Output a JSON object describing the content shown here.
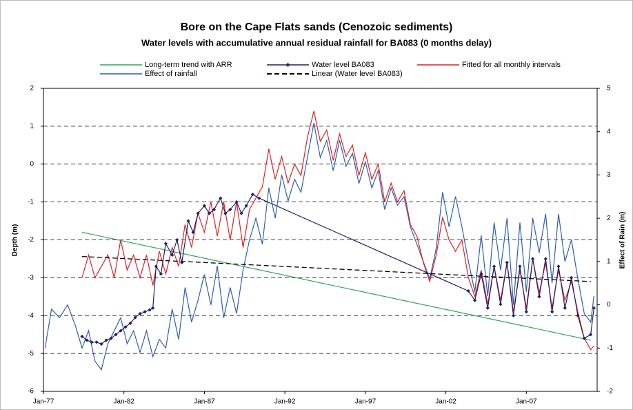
{
  "chart_data": {
    "type": "line",
    "title": "Bore on the Cape Flats sands (Cenozoic sediments)",
    "subtitle": "Water levels with accumulative annual residual rainfall for BA083 (0 months delay)",
    "ylabel": "Depth (m)",
    "y2label": "Effect of Rain (m)",
    "xlim": [
      1977,
      2011.4
    ],
    "xticks": [
      {
        "value": 1977,
        "label": "Jan-77"
      },
      {
        "value": 1982,
        "label": "Jan-82"
      },
      {
        "value": 1987,
        "label": "Jan-87"
      },
      {
        "value": 1992,
        "label": "Jan-92"
      },
      {
        "value": 1997,
        "label": "Jan-97"
      },
      {
        "value": 2002,
        "label": "Jan-02"
      },
      {
        "value": 2007,
        "label": "Jan-07"
      }
    ],
    "ylim": [
      -6,
      2
    ],
    "yticks": [
      -6,
      -5,
      -4,
      -3,
      -2,
      -1,
      0,
      1,
      2
    ],
    "y2lim": [
      -2,
      5
    ],
    "y2ticks": [
      -2,
      -1,
      0,
      1,
      2,
      3,
      4,
      5
    ],
    "grid": true,
    "legend": "top",
    "series": [
      {
        "name": "Long-term trend with ARR",
        "color": "#2ca25f",
        "x": [
          1979.4,
          2011.0
        ],
        "values": [
          -1.8,
          -4.65
        ]
      },
      {
        "name": "Water level BA083",
        "color": "#1f1f6b",
        "marker": "diamond",
        "x": [
          1979.4,
          1979.7,
          1980.0,
          1980.3,
          1980.6,
          1980.9,
          1981.2,
          1981.5,
          1981.8,
          1982.1,
          1982.4,
          1982.7,
          1983.0,
          1983.3,
          1983.6,
          1983.8,
          1984.0,
          1984.3,
          1984.6,
          1985.0,
          1985.3,
          1985.6,
          1986.0,
          1986.3,
          1986.6,
          1987.0,
          1987.3,
          1987.6,
          1988.0,
          1988.3,
          1988.6,
          1989.0,
          1989.3,
          1989.6,
          1990.0,
          1990.4,
          2003.4,
          2003.8,
          2004.2,
          2004.6,
          2005.0,
          2005.4,
          2005.8,
          2006.2,
          2006.6,
          2007.0,
          2007.4,
          2007.8,
          2008.2,
          2008.6,
          2009.0,
          2009.4,
          2009.8,
          2010.2,
          2010.6,
          2011.0,
          2011.2
        ],
        "values": [
          -4.55,
          -4.65,
          -4.7,
          -4.7,
          -4.75,
          -4.65,
          -4.6,
          -4.5,
          -4.4,
          -4.3,
          -4.2,
          -4.05,
          -3.95,
          -3.9,
          -3.85,
          -3.8,
          -2.7,
          -2.9,
          -2.1,
          -2.4,
          -2.0,
          -2.6,
          -1.5,
          -1.8,
          -1.3,
          -1.1,
          -1.3,
          -1.2,
          -0.9,
          -1.3,
          -1.2,
          -1.0,
          -1.3,
          -1.1,
          -0.8,
          -0.9,
          -3.35,
          -3.6,
          -2.9,
          -3.8,
          -2.7,
          -3.7,
          -2.6,
          -4.0,
          -2.7,
          -3.9,
          -2.5,
          -3.5,
          -2.5,
          -3.9,
          -2.7,
          -3.8,
          -3.0,
          -4.0,
          -4.6,
          -4.5,
          -3.8
        ]
      },
      {
        "name": "Fitted for all monthly intervals",
        "color": "#e02020",
        "x": [
          1979.4,
          1979.8,
          1980.2,
          1980.6,
          1981.0,
          1981.4,
          1981.8,
          1982.2,
          1982.6,
          1983.0,
          1983.4,
          1983.8,
          1984.2,
          1984.6,
          1985.0,
          1985.4,
          1985.8,
          1986.2,
          1986.6,
          1987.0,
          1987.4,
          1987.8,
          1988.2,
          1988.6,
          1989.0,
          1989.4,
          1989.8,
          1990.2,
          1990.6,
          1991.0,
          1991.4,
          1991.8,
          1992.2,
          1992.6,
          1993.0,
          1993.4,
          1993.8,
          1994.2,
          1994.6,
          1995.0,
          1995.4,
          1995.8,
          1996.2,
          1996.6,
          1997.0,
          1997.4,
          1997.8,
          1998.2,
          1998.6,
          1999.0,
          1999.4,
          1999.8,
          2000.2,
          2000.6,
          2001.0,
          2001.4,
          2001.8,
          2002.2,
          2002.6,
          2003.0,
          2003.4,
          2003.8,
          2004.2,
          2004.6,
          2005.0,
          2005.4,
          2005.8,
          2006.2,
          2006.6,
          2007.0,
          2007.4,
          2007.8,
          2008.2,
          2008.6,
          2009.0,
          2009.4,
          2009.8,
          2010.2,
          2010.6,
          2011.0,
          2011.2
        ],
        "values": [
          -3.0,
          -2.4,
          -3.0,
          -2.7,
          -2.4,
          -3.0,
          -2.0,
          -2.8,
          -2.4,
          -3.0,
          -2.4,
          -3.2,
          -2.3,
          -2.9,
          -2.2,
          -2.7,
          -1.6,
          -2.2,
          -1.3,
          -1.8,
          -1.0,
          -1.9,
          -1.0,
          -2.0,
          -1.0,
          -2.2,
          -1.2,
          -0.9,
          -0.6,
          0.4,
          -0.4,
          0.2,
          -0.5,
          0.0,
          -0.3,
          0.7,
          1.4,
          0.6,
          0.9,
          0.1,
          0.8,
          0.2,
          0.5,
          -0.3,
          0.3,
          -0.4,
          0.0,
          -1.0,
          -0.5,
          -1.0,
          -0.7,
          -1.6,
          -1.9,
          -2.6,
          -3.1,
          -2.4,
          -1.4,
          -2.0,
          -2.3,
          -2.0,
          -3.0,
          -3.5,
          -2.8,
          -3.7,
          -2.7,
          -3.6,
          -2.6,
          -3.9,
          -2.8,
          -3.8,
          -2.5,
          -3.4,
          -2.6,
          -3.8,
          -2.8,
          -3.6,
          -3.1,
          -3.9,
          -4.6,
          -4.9,
          -4.8
        ]
      },
      {
        "name": "Effect of rainfall",
        "color": "#2a5db0",
        "axis": "y2",
        "x": [
          1977.1,
          1977.5,
          1978.0,
          1978.5,
          1979.0,
          1979.4,
          1979.8,
          1980.2,
          1980.6,
          1981.0,
          1981.4,
          1981.8,
          1982.2,
          1982.6,
          1983.0,
          1983.4,
          1983.8,
          1984.2,
          1984.6,
          1985.0,
          1985.4,
          1985.8,
          1986.2,
          1986.6,
          1987.0,
          1987.4,
          1987.8,
          1988.2,
          1988.6,
          1989.0,
          1989.4,
          1989.8,
          1990.2,
          1990.6,
          1991.0,
          1991.4,
          1991.8,
          1992.2,
          1992.6,
          1993.0,
          1993.4,
          1993.8,
          1994.2,
          1994.6,
          1995.0,
          1995.4,
          1995.8,
          1996.2,
          1996.6,
          1997.0,
          1997.4,
          1997.8,
          1998.2,
          1998.6,
          1999.0,
          1999.4,
          1999.8,
          2000.2,
          2000.6,
          2001.0,
          2001.4,
          2001.8,
          2002.2,
          2002.6,
          2003.0,
          2003.4,
          2003.8,
          2004.2,
          2004.6,
          2005.0,
          2005.4,
          2005.8,
          2006.2,
          2006.6,
          2007.0,
          2007.4,
          2007.8,
          2008.2,
          2008.6,
          2009.0,
          2009.4,
          2009.8,
          2010.2,
          2010.6,
          2011.0,
          2011.2
        ],
        "values": [
          -1.0,
          -0.1,
          -0.3,
          0.0,
          -0.5,
          -1.0,
          -0.6,
          -1.3,
          -1.5,
          -0.9,
          -0.6,
          -0.3,
          -0.9,
          -0.6,
          -1.1,
          -0.6,
          -1.2,
          -0.8,
          -1.0,
          -0.1,
          -0.8,
          0.4,
          -0.4,
          0.1,
          0.7,
          0.0,
          0.9,
          -0.3,
          0.4,
          -0.2,
          0.8,
          1.5,
          2.0,
          1.4,
          2.7,
          2.0,
          3.0,
          2.4,
          2.9,
          2.6,
          3.4,
          4.2,
          3.4,
          3.8,
          3.1,
          3.8,
          3.2,
          3.5,
          2.8,
          3.3,
          2.7,
          3.1,
          2.2,
          2.7,
          2.3,
          2.5,
          1.8,
          1.4,
          1.0,
          0.6,
          1.3,
          2.6,
          1.8,
          2.5,
          1.8,
          1.0,
          0.3,
          1.6,
          0.2,
          1.9,
          0.8,
          2.0,
          0.0,
          1.9,
          0.3,
          2.0,
          1.2,
          2.1,
          0.5,
          2.1,
          1.0,
          1.5,
          0.6,
          -0.2,
          -0.4,
          0.2
        ]
      },
      {
        "name": "Linear (Water level BA083)",
        "color": "#000000",
        "dash": true,
        "x": [
          1979.4,
          2011.0
        ],
        "values": [
          -2.44,
          -3.1
        ]
      }
    ]
  }
}
